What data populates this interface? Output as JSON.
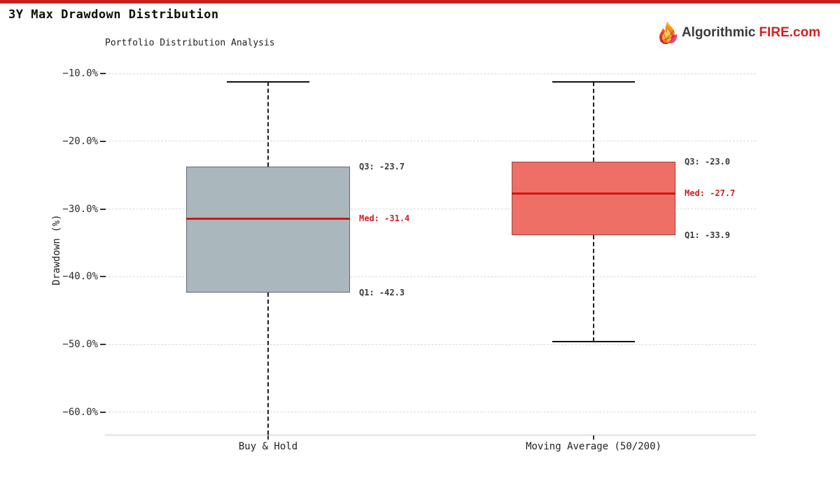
{
  "page": {
    "accent_bar_color": "#c9201d"
  },
  "header": {
    "title": "3Y Max Drawdown Distribution",
    "logo": {
      "icon": "flame-icon",
      "text_primary": "Algorithmic",
      "text_accent": "FIRE.com",
      "primary_color": "#3a3a3a",
      "accent_color": "#d61f1f"
    }
  },
  "chart_data": {
    "type": "boxplot",
    "title": "3Y Max Drawdown Distribution",
    "subtitle": "Portfolio Distribution Analysis",
    "ylabel": "Drawdown (%)",
    "ylim": [
      -63.3,
      -7.8
    ],
    "yticks": [
      -10,
      -20,
      -30,
      -40,
      -50,
      -60
    ],
    "ytick_labels": [
      "−10.0%",
      "−20.0%",
      "−30.0%",
      "−40.0%",
      "−50.0%",
      "−60.0%"
    ],
    "grid": {
      "horizontal_dashed": true,
      "color": "#d8d8d8"
    },
    "legend": "none",
    "median_color": "#d41414",
    "annotation_color": "#3a3a3a",
    "annotation_median_color": "#cc2121",
    "categories": [
      "Buy & Hold",
      "Moving Average (50/200)"
    ],
    "series": [
      {
        "label": "Buy & Hold",
        "q1": -42.3,
        "median": -31.4,
        "q3": -23.7,
        "whisker_high": -11.2,
        "whisker_low": null,
        "whisker_low_note": "lower whisker extends below visible axis",
        "box_fill": "#aab8be",
        "box_edge": "#5f6a6e",
        "labels": {
          "q3": "Q3: -23.7",
          "med": "Med: -31.4",
          "q1": "Q1: -42.3"
        }
      },
      {
        "label": "Moving Average (50/200)",
        "q1": -33.9,
        "median": -27.7,
        "q3": -23.0,
        "whisker_high": -11.2,
        "whisker_low": -49.6,
        "box_fill": "#ed6f66",
        "box_edge": "#97453f",
        "labels": {
          "q3": "Q3: -23.0",
          "med": "Med: -27.7",
          "q1": "Q1: -33.9"
        }
      }
    ]
  }
}
